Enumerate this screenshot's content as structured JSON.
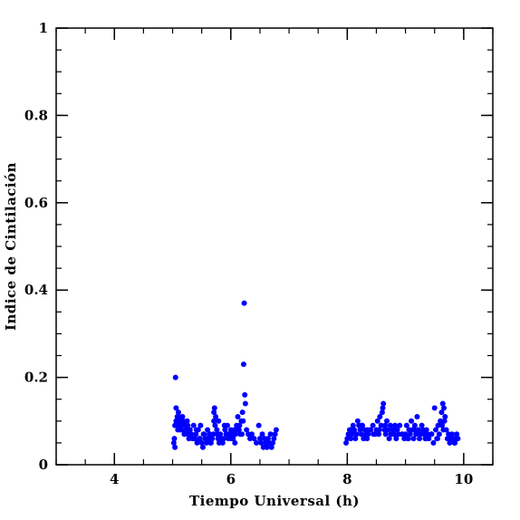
{
  "chart_data": {
    "type": "scatter",
    "title": "",
    "xlabel": "Tiempo Universal (h)",
    "ylabel": "Indice de Cintilación",
    "xlim": [
      3.0,
      10.5
    ],
    "ylim": [
      0.0,
      1.0
    ],
    "xticks": [
      4,
      6,
      8,
      10
    ],
    "xtick_labels": [
      "4",
      "6",
      "8",
      "10"
    ],
    "yticks": [
      0,
      0.2,
      0.4,
      0.6,
      0.8,
      1
    ],
    "ytick_labels": [
      "0",
      "0.2",
      "0.4",
      "0.6",
      "0.8",
      "1"
    ],
    "x_minor_step": 0.5,
    "y_minor_step": 0.05,
    "grid": false,
    "marker_color": "#0000ff",
    "series": [
      {
        "x": [
          5.02,
          5.04,
          5.05,
          5.06,
          5.08,
          5.09,
          5.1,
          5.12,
          5.13,
          5.15,
          5.17,
          5.18,
          5.2,
          5.22,
          5.23,
          5.25,
          5.27,
          5.28,
          5.3,
          5.32,
          5.34,
          5.36,
          5.38,
          5.4,
          5.42,
          5.44,
          5.46,
          5.48,
          5.5,
          5.52,
          5.54,
          5.56,
          5.58,
          5.6,
          5.62,
          5.64,
          5.66,
          5.68,
          5.7,
          5.72,
          5.74,
          5.76,
          5.78,
          5.8,
          5.82,
          5.84,
          5.86,
          5.88,
          5.9,
          5.92,
          5.94,
          5.96,
          5.98,
          6.0,
          6.02,
          6.04,
          6.06,
          6.08,
          6.1,
          6.12,
          6.14,
          6.16,
          6.18,
          6.2,
          6.22,
          6.23,
          6.24,
          6.25,
          6.27,
          6.3,
          6.33,
          6.36,
          6.4,
          6.44,
          6.48,
          6.5,
          6.52,
          6.54,
          6.56,
          6.58,
          6.6,
          6.62,
          6.64,
          6.66,
          6.68,
          6.7,
          6.72,
          6.74,
          6.76,
          6.78,
          5.03,
          5.07,
          5.11,
          5.14,
          5.16,
          5.21,
          5.26,
          5.31,
          5.35,
          5.41,
          5.47,
          5.53,
          5.59,
          5.65,
          5.71,
          5.77,
          5.83,
          5.89,
          5.95,
          6.01,
          6.07,
          6.13,
          6.19,
          5.04,
          5.06,
          5.09,
          5.71,
          5.73,
          5.63,
          5.79,
          6.15,
          6.21
        ],
        "y": [
          0.05,
          0.04,
          0.2,
          0.13,
          0.11,
          0.09,
          0.12,
          0.1,
          0.08,
          0.09,
          0.11,
          0.1,
          0.07,
          0.09,
          0.08,
          0.1,
          0.07,
          0.06,
          0.08,
          0.07,
          0.06,
          0.09,
          0.06,
          0.07,
          0.05,
          0.08,
          0.06,
          0.09,
          0.05,
          0.04,
          0.07,
          0.06,
          0.05,
          0.08,
          0.06,
          0.07,
          0.05,
          0.06,
          0.07,
          0.13,
          0.11,
          0.08,
          0.06,
          0.05,
          0.07,
          0.06,
          0.05,
          0.06,
          0.08,
          0.07,
          0.09,
          0.06,
          0.07,
          0.08,
          0.07,
          0.06,
          0.08,
          0.07,
          0.09,
          0.11,
          0.08,
          0.07,
          0.1,
          0.12,
          0.23,
          0.37,
          0.16,
          0.14,
          0.08,
          0.07,
          0.06,
          0.07,
          0.06,
          0.05,
          0.09,
          0.06,
          0.05,
          0.07,
          0.04,
          0.06,
          0.05,
          0.04,
          0.06,
          0.05,
          0.07,
          0.04,
          0.05,
          0.06,
          0.07,
          0.08,
          0.06,
          0.1,
          0.11,
          0.09,
          0.08,
          0.07,
          0.09,
          0.07,
          0.06,
          0.08,
          0.06,
          0.07,
          0.06,
          0.05,
          0.1,
          0.07,
          0.06,
          0.09,
          0.07,
          0.06,
          0.05,
          0.08,
          0.07,
          0.09,
          0.1,
          0.08,
          0.12,
          0.09,
          0.07,
          0.1,
          0.09,
          0.1
        ]
      },
      {
        "x": [
          7.98,
          8.0,
          8.02,
          8.04,
          8.06,
          8.08,
          8.1,
          8.12,
          8.14,
          8.16,
          8.18,
          8.2,
          8.22,
          8.24,
          8.26,
          8.28,
          8.3,
          8.32,
          8.34,
          8.36,
          8.4,
          8.44,
          8.48,
          8.5,
          8.52,
          8.54,
          8.56,
          8.58,
          8.6,
          8.62,
          8.64,
          8.66,
          8.68,
          8.7,
          8.72,
          8.74,
          8.76,
          8.78,
          8.8,
          8.82,
          8.84,
          8.86,
          8.88,
          8.9,
          8.94,
          8.98,
          9.0,
          9.02,
          9.04,
          9.06,
          9.08,
          9.1,
          9.12,
          9.14,
          9.16,
          9.18,
          9.2,
          9.22,
          9.24,
          9.26,
          9.28,
          9.3,
          9.32,
          9.34,
          9.36,
          9.38,
          9.4,
          9.44,
          9.48,
          9.5,
          9.52,
          9.54,
          9.56,
          9.58,
          9.6,
          9.62,
          9.64,
          9.66,
          9.68,
          9.7,
          9.72,
          9.74,
          9.76,
          9.78,
          9.8,
          9.82,
          9.84,
          9.86,
          9.88,
          9.9,
          8.05,
          8.15,
          8.25,
          8.35,
          8.45,
          8.55,
          8.65,
          8.75,
          8.85,
          8.95,
          9.05,
          9.15,
          9.25,
          9.35,
          9.45,
          9.55,
          9.65,
          9.75,
          9.85,
          8.61,
          9.63,
          9.67
        ],
        "y": [
          0.05,
          0.06,
          0.07,
          0.08,
          0.06,
          0.07,
          0.09,
          0.08,
          0.06,
          0.07,
          0.1,
          0.09,
          0.08,
          0.07,
          0.09,
          0.06,
          0.08,
          0.07,
          0.06,
          0.07,
          0.08,
          0.09,
          0.07,
          0.08,
          0.1,
          0.07,
          0.11,
          0.09,
          0.12,
          0.14,
          0.08,
          0.07,
          0.1,
          0.08,
          0.06,
          0.09,
          0.07,
          0.08,
          0.07,
          0.09,
          0.06,
          0.08,
          0.07,
          0.09,
          0.07,
          0.06,
          0.07,
          0.09,
          0.06,
          0.08,
          0.07,
          0.1,
          0.08,
          0.06,
          0.09,
          0.07,
          0.11,
          0.08,
          0.06,
          0.07,
          0.09,
          0.08,
          0.07,
          0.06,
          0.08,
          0.07,
          0.06,
          0.07,
          0.05,
          0.13,
          0.08,
          0.06,
          0.09,
          0.07,
          0.1,
          0.12,
          0.14,
          0.13,
          0.11,
          0.08,
          0.06,
          0.07,
          0.05,
          0.06,
          0.07,
          0.06,
          0.05,
          0.06,
          0.07,
          0.06,
          0.08,
          0.07,
          0.09,
          0.08,
          0.07,
          0.08,
          0.09,
          0.07,
          0.08,
          0.07,
          0.06,
          0.08,
          0.07,
          0.06,
          0.07,
          0.06,
          0.08,
          0.06,
          0.05,
          0.13,
          0.09,
          0.1
        ]
      }
    ]
  }
}
